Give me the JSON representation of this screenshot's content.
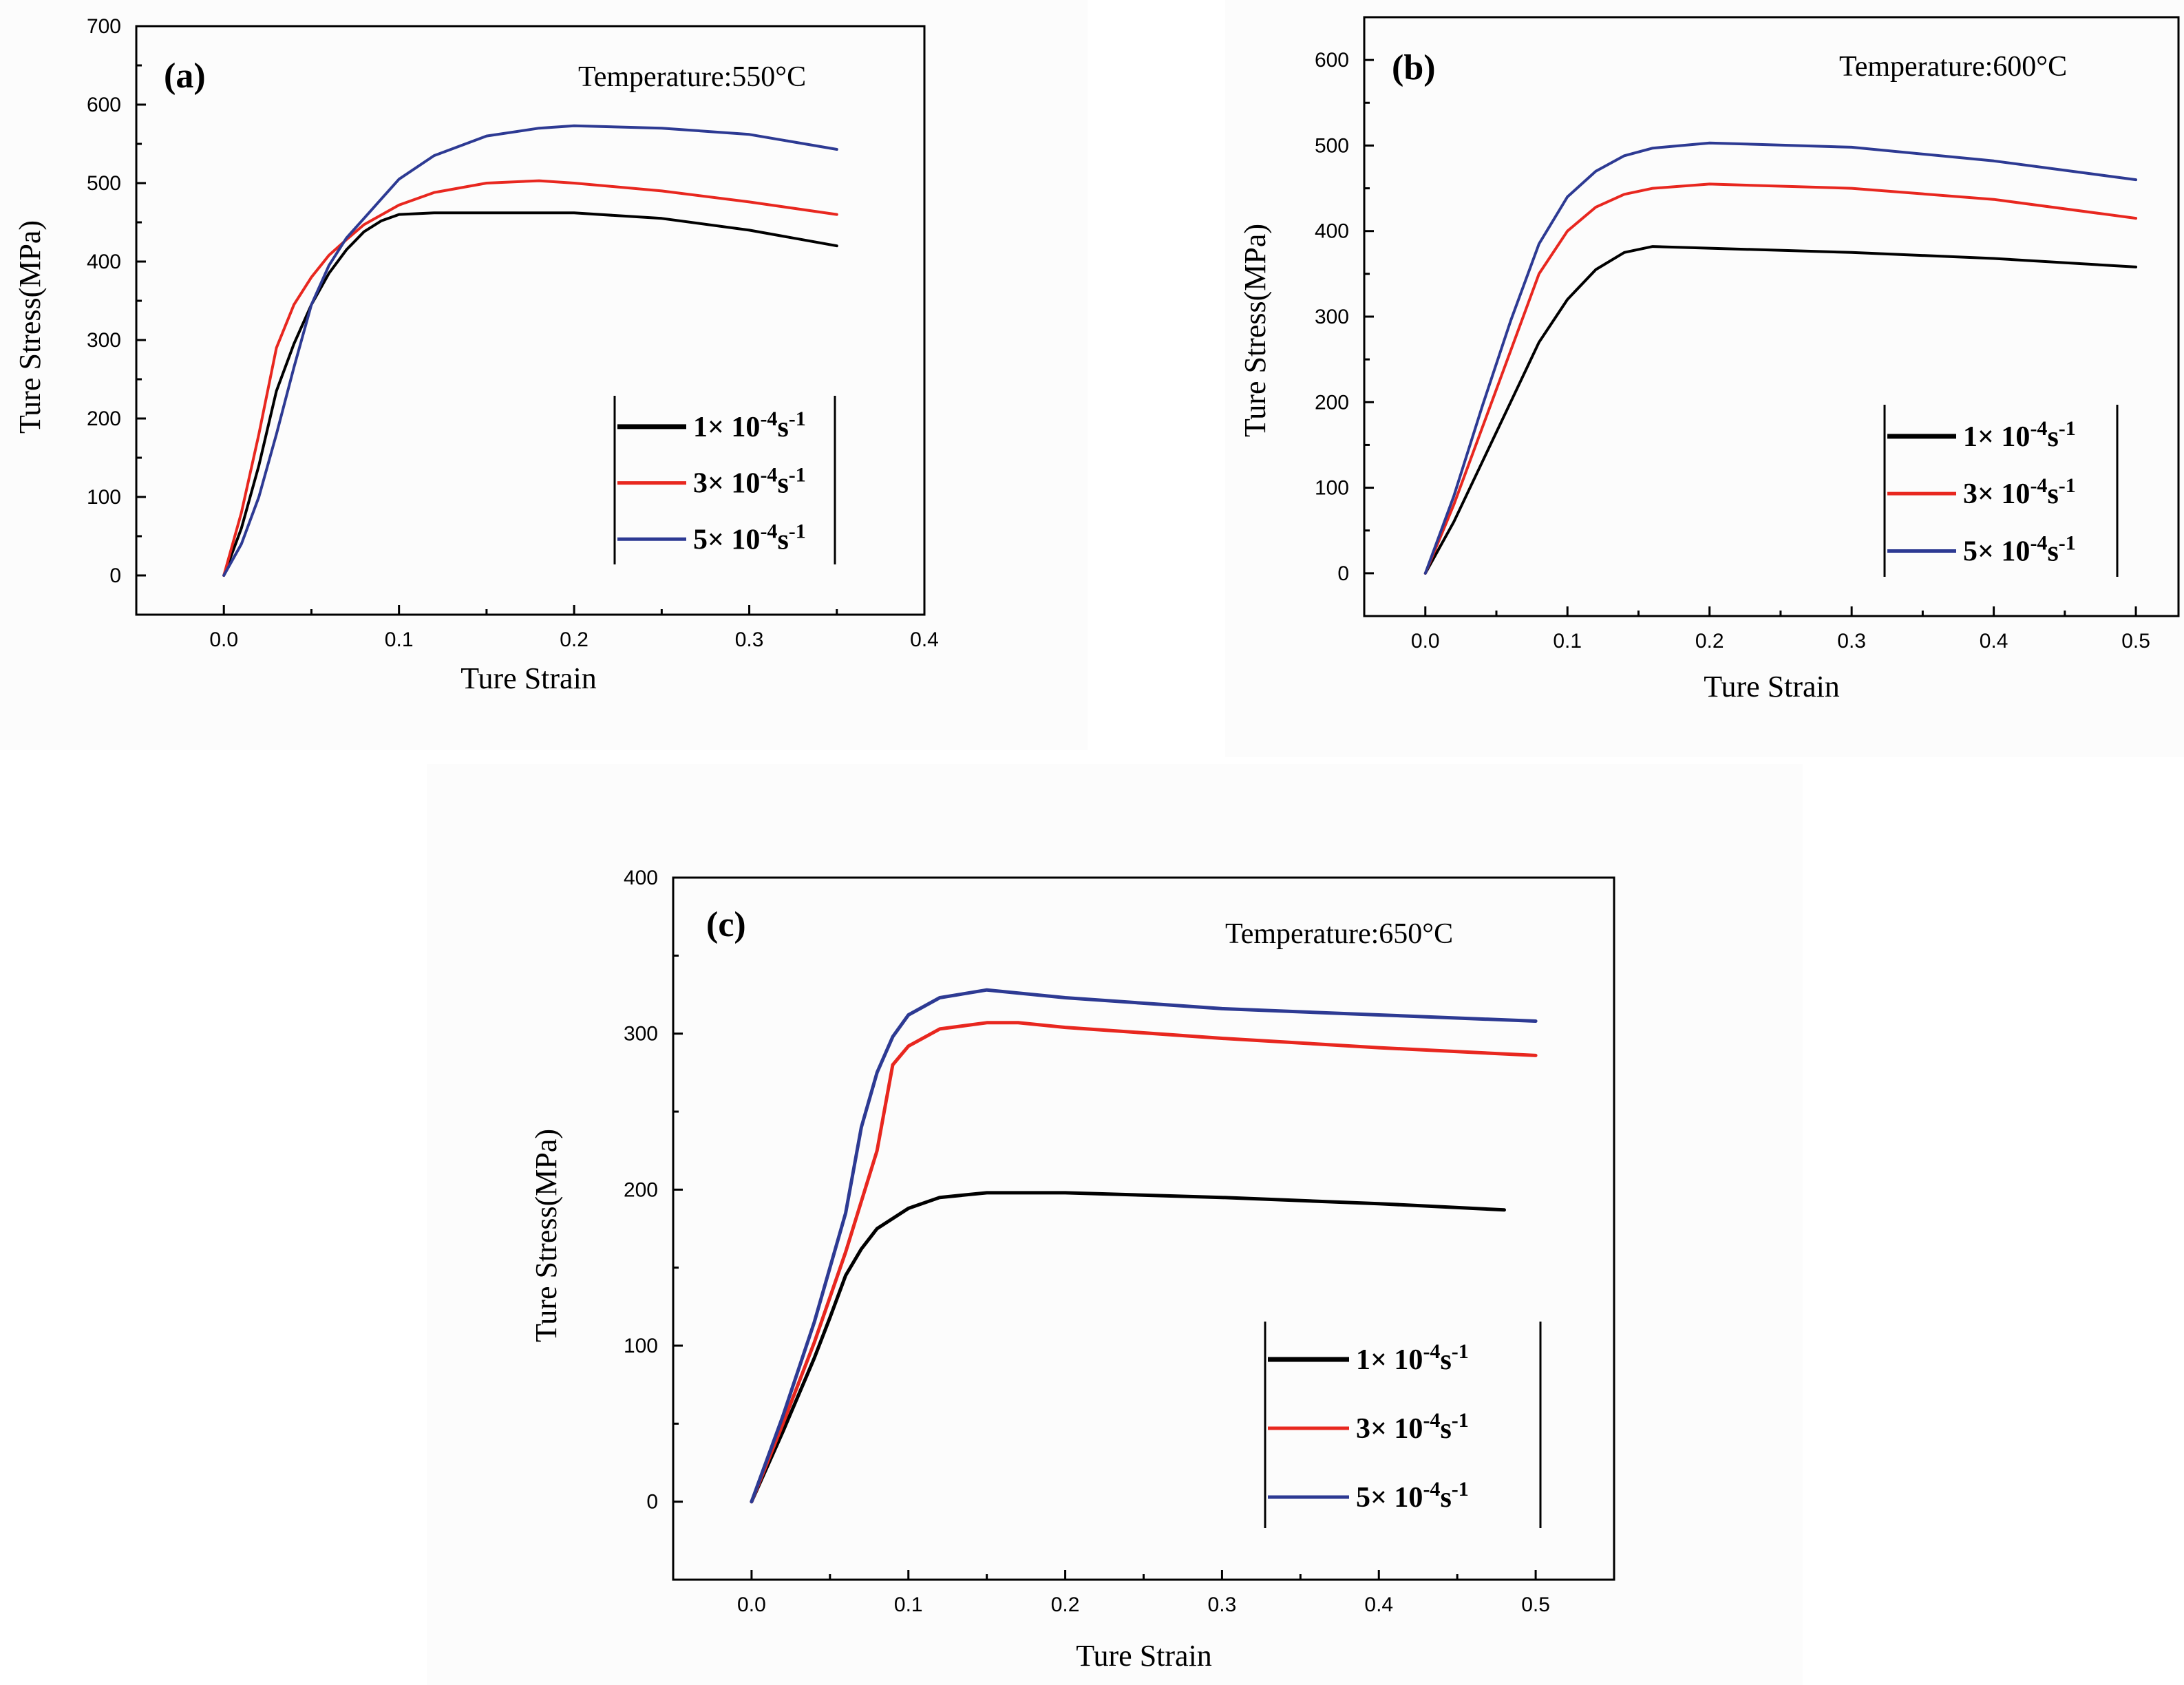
{
  "figure": {
    "colors": {
      "black": "#000000",
      "red": "#e8271f",
      "blue": "#2d3a93"
    }
  },
  "chart_data": [
    {
      "type": "line",
      "panel": "(a)",
      "annotation": "Temperature:550°C",
      "xlabel": "Ture Strain",
      "ylabel": "Ture Stress(MPa)",
      "xlim": [
        -0.05,
        0.4
      ],
      "ylim": [
        -50,
        700
      ],
      "xticks": [
        "0.0",
        "0.1",
        "0.2",
        "0.3",
        "0.4"
      ],
      "yticks": [
        "0",
        "100",
        "200",
        "300",
        "400",
        "500",
        "600",
        "700"
      ],
      "legend_position": "center-right",
      "series": [
        {
          "name": "1× 10-4s-1",
          "legend": {
            "base": "1× 10",
            "sup": "-4",
            "tail": "s",
            "sup2": "-1"
          },
          "color": "#000000",
          "points": [
            [
              0,
              0
            ],
            [
              0.01,
              60
            ],
            [
              0.02,
              140
            ],
            [
              0.03,
              235
            ],
            [
              0.04,
              295
            ],
            [
              0.05,
              345
            ],
            [
              0.06,
              385
            ],
            [
              0.07,
              415
            ],
            [
              0.08,
              438
            ],
            [
              0.09,
              452
            ],
            [
              0.1,
              460
            ],
            [
              0.12,
              462
            ],
            [
              0.15,
              462
            ],
            [
              0.2,
              462
            ],
            [
              0.25,
              455
            ],
            [
              0.3,
              440
            ],
            [
              0.35,
              420
            ]
          ]
        },
        {
          "name": "3× 10-4s-1",
          "legend": {
            "base": "3× 10",
            "sup": "-4",
            "tail": "s",
            "sup2": "-1"
          },
          "color": "#e8271f",
          "points": [
            [
              0,
              0
            ],
            [
              0.01,
              80
            ],
            [
              0.02,
              180
            ],
            [
              0.03,
              290
            ],
            [
              0.04,
              345
            ],
            [
              0.05,
              380
            ],
            [
              0.06,
              408
            ],
            [
              0.07,
              428
            ],
            [
              0.08,
              447
            ],
            [
              0.1,
              472
            ],
            [
              0.12,
              488
            ],
            [
              0.15,
              500
            ],
            [
              0.18,
              503
            ],
            [
              0.2,
              500
            ],
            [
              0.25,
              490
            ],
            [
              0.3,
              476
            ],
            [
              0.35,
              460
            ]
          ]
        },
        {
          "name": "5× 10-4s-1",
          "legend": {
            "base": "5× 10",
            "sup": "-4",
            "tail": "s",
            "sup2": "-1"
          },
          "color": "#2d3a93",
          "points": [
            [
              0,
              0
            ],
            [
              0.01,
              40
            ],
            [
              0.02,
              100
            ],
            [
              0.03,
              180
            ],
            [
              0.04,
              265
            ],
            [
              0.05,
              345
            ],
            [
              0.06,
              395
            ],
            [
              0.07,
              430
            ],
            [
              0.08,
              455
            ],
            [
              0.09,
              480
            ],
            [
              0.1,
              505
            ],
            [
              0.12,
              535
            ],
            [
              0.15,
              560
            ],
            [
              0.18,
              570
            ],
            [
              0.2,
              573
            ],
            [
              0.25,
              570
            ],
            [
              0.3,
              562
            ],
            [
              0.35,
              543
            ]
          ]
        }
      ]
    },
    {
      "type": "line",
      "panel": "(b)",
      "annotation": "Temperature:600°C",
      "xlabel": "Ture Strain",
      "ylabel": "Ture Stress(MPa)",
      "xlim": [
        -0.043,
        0.53
      ],
      "ylim": [
        -50,
        650
      ],
      "xticks": [
        "0.0",
        "0.1",
        "0.2",
        "0.3",
        "0.4",
        "0.5"
      ],
      "yticks": [
        "0",
        "100",
        "200",
        "300",
        "400",
        "500",
        "600"
      ],
      "legend_position": "center-right",
      "series": [
        {
          "name": "1× 10-4s-1",
          "legend": {
            "base": "1× 10",
            "sup": "-4",
            "tail": "s",
            "sup2": "-1"
          },
          "color": "#000000",
          "points": [
            [
              0,
              0
            ],
            [
              0.02,
              60
            ],
            [
              0.04,
              130
            ],
            [
              0.06,
              200
            ],
            [
              0.08,
              270
            ],
            [
              0.1,
              320
            ],
            [
              0.12,
              355
            ],
            [
              0.14,
              375
            ],
            [
              0.16,
              382
            ],
            [
              0.2,
              380
            ],
            [
              0.3,
              375
            ],
            [
              0.4,
              368
            ],
            [
              0.5,
              358
            ]
          ]
        },
        {
          "name": "3× 10-4s-1",
          "legend": {
            "base": "3× 10",
            "sup": "-4",
            "tail": "s",
            "sup2": "-1"
          },
          "color": "#e8271f",
          "points": [
            [
              0,
              0
            ],
            [
              0.02,
              80
            ],
            [
              0.04,
              170
            ],
            [
              0.06,
              260
            ],
            [
              0.08,
              350
            ],
            [
              0.1,
              400
            ],
            [
              0.12,
              428
            ],
            [
              0.14,
              443
            ],
            [
              0.16,
              450
            ],
            [
              0.2,
              455
            ],
            [
              0.3,
              450
            ],
            [
              0.4,
              437
            ],
            [
              0.5,
              415
            ]
          ]
        },
        {
          "name": "5× 10-4s-1",
          "legend": {
            "base": "5× 10",
            "sup": "-4",
            "tail": "s",
            "sup2": "-1"
          },
          "color": "#2d3a93",
          "points": [
            [
              0,
              0
            ],
            [
              0.02,
              90
            ],
            [
              0.04,
              195
            ],
            [
              0.06,
              295
            ],
            [
              0.08,
              385
            ],
            [
              0.1,
              440
            ],
            [
              0.12,
              470
            ],
            [
              0.14,
              488
            ],
            [
              0.16,
              497
            ],
            [
              0.2,
              503
            ],
            [
              0.3,
              498
            ],
            [
              0.4,
              482
            ],
            [
              0.5,
              460
            ]
          ]
        }
      ]
    },
    {
      "type": "line",
      "panel": "(c)",
      "annotation": "Temperature:650°C",
      "xlabel": "Ture Strain",
      "ylabel": "Ture Stress(MPa)",
      "xlim": [
        -0.05,
        0.55
      ],
      "ylim": [
        -50,
        400
      ],
      "xticks": [
        "0.0",
        "0.1",
        "0.2",
        "0.3",
        "0.4",
        "0.5"
      ],
      "yticks": [
        "0",
        "100",
        "200",
        "300",
        "400"
      ],
      "legend_position": "bottom-right",
      "series": [
        {
          "name": "1× 10-4s-1",
          "legend": {
            "base": "1× 10",
            "sup": "-4",
            "tail": "s",
            "sup2": "-1"
          },
          "color": "#000000",
          "points": [
            [
              0,
              0
            ],
            [
              0.02,
              45
            ],
            [
              0.04,
              92
            ],
            [
              0.05,
              118
            ],
            [
              0.06,
              145
            ],
            [
              0.07,
              162
            ],
            [
              0.08,
              175
            ],
            [
              0.1,
              188
            ],
            [
              0.12,
              195
            ],
            [
              0.15,
              198
            ],
            [
              0.2,
              198
            ],
            [
              0.3,
              195
            ],
            [
              0.4,
              191
            ],
            [
              0.48,
              187
            ]
          ]
        },
        {
          "name": "3× 10-4s-1",
          "legend": {
            "base": "3× 10",
            "sup": "-4",
            "tail": "s",
            "sup2": "-1"
          },
          "color": "#e8271f",
          "points": [
            [
              0,
              0
            ],
            [
              0.02,
              50
            ],
            [
              0.04,
              102
            ],
            [
              0.06,
              160
            ],
            [
              0.08,
              225
            ],
            [
              0.09,
              280
            ],
            [
              0.1,
              292
            ],
            [
              0.12,
              303
            ],
            [
              0.15,
              307
            ],
            [
              0.17,
              307
            ],
            [
              0.2,
              304
            ],
            [
              0.3,
              297
            ],
            [
              0.4,
              291
            ],
            [
              0.5,
              286
            ]
          ]
        },
        {
          "name": "5× 10-4s-1",
          "legend": {
            "base": "5× 10",
            "sup": "-4",
            "tail": "s",
            "sup2": "-1"
          },
          "color": "#2d3a93",
          "points": [
            [
              0,
              0
            ],
            [
              0.02,
              55
            ],
            [
              0.04,
              115
            ],
            [
              0.06,
              185
            ],
            [
              0.07,
              240
            ],
            [
              0.08,
              275
            ],
            [
              0.09,
              298
            ],
            [
              0.1,
              312
            ],
            [
              0.12,
              323
            ],
            [
              0.15,
              328
            ],
            [
              0.2,
              323
            ],
            [
              0.3,
              316
            ],
            [
              0.4,
              312
            ],
            [
              0.5,
              308
            ]
          ]
        }
      ]
    }
  ]
}
